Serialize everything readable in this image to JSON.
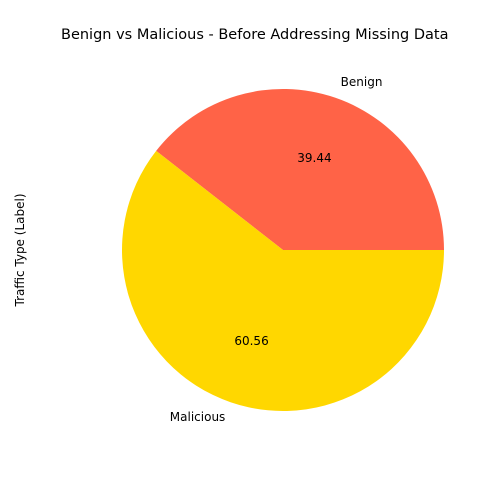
{
  "chart_data": {
    "type": "pie",
    "title": "Benign vs Malicious - Before Addressing Missing Data",
    "ylabel": "Traffic Type (Label)",
    "slices": [
      {
        "label": "Benign",
        "value": 39.44,
        "value_label": "39.44",
        "color": "#FF6347"
      },
      {
        "label": "Malicious",
        "value": 60.56,
        "value_label": "60.56",
        "color": "#FFD700"
      }
    ],
    "start_angle_deg": 0,
    "direction": "counterclockwise"
  }
}
